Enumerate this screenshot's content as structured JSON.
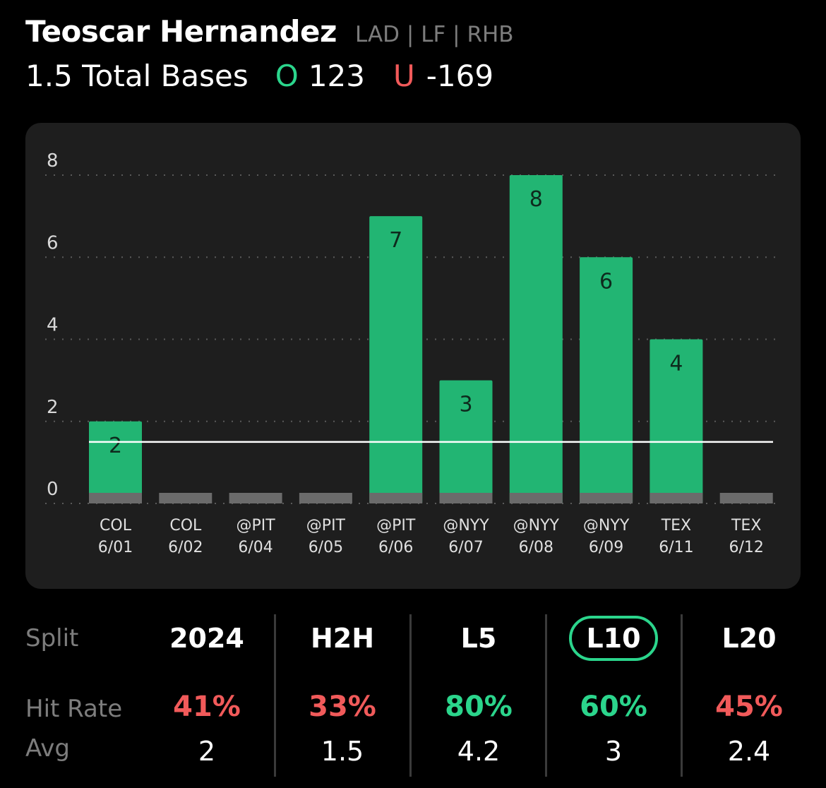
{
  "player": {
    "name": "Teoscar Hernandez",
    "meta": "LAD | LF | RHB"
  },
  "prop": {
    "line_label": "1.5 Total Bases",
    "over_icon": "O",
    "over_odds": "123",
    "under_icon": "U",
    "under_odds": "-169"
  },
  "colors": {
    "over": "#2bd58c",
    "under": "#f15a5a",
    "bar": "#22b573",
    "bar_zero": "#6b6b6b",
    "muted": "#7d7d7d"
  },
  "chart_data": {
    "type": "bar",
    "y_ticks": [
      "0",
      "2",
      "4",
      "6",
      "8"
    ],
    "ylim": [
      0,
      8
    ],
    "threshold": 1.5,
    "grid": true,
    "categories": [
      {
        "team": "COL",
        "date": "6/01"
      },
      {
        "team": "COL",
        "date": "6/02"
      },
      {
        "team": "@PIT",
        "date": "6/04"
      },
      {
        "team": "@PIT",
        "date": "6/05"
      },
      {
        "team": "@PIT",
        "date": "6/06"
      },
      {
        "team": "@NYY",
        "date": "6/07"
      },
      {
        "team": "@NYY",
        "date": "6/08"
      },
      {
        "team": "@NYY",
        "date": "6/09"
      },
      {
        "team": "TEX",
        "date": "6/11"
      },
      {
        "team": "TEX",
        "date": "6/12"
      }
    ],
    "values": [
      2,
      0,
      0,
      0,
      7,
      3,
      8,
      6,
      4,
      0
    ]
  },
  "splits": {
    "row_labels": {
      "split": "Split",
      "hit_rate": "Hit Rate",
      "avg": "Avg"
    },
    "columns": [
      {
        "label": "2024",
        "hit_rate": "41%",
        "status": "under",
        "avg": "2",
        "selected": false
      },
      {
        "label": "H2H",
        "hit_rate": "33%",
        "status": "under",
        "avg": "1.5",
        "selected": false
      },
      {
        "label": "L5",
        "hit_rate": "80%",
        "status": "over",
        "avg": "4.2",
        "selected": false
      },
      {
        "label": "L10",
        "hit_rate": "60%",
        "status": "over",
        "avg": "3",
        "selected": true
      },
      {
        "label": "L20",
        "hit_rate": "45%",
        "status": "under",
        "avg": "2.4",
        "selected": false
      }
    ]
  }
}
